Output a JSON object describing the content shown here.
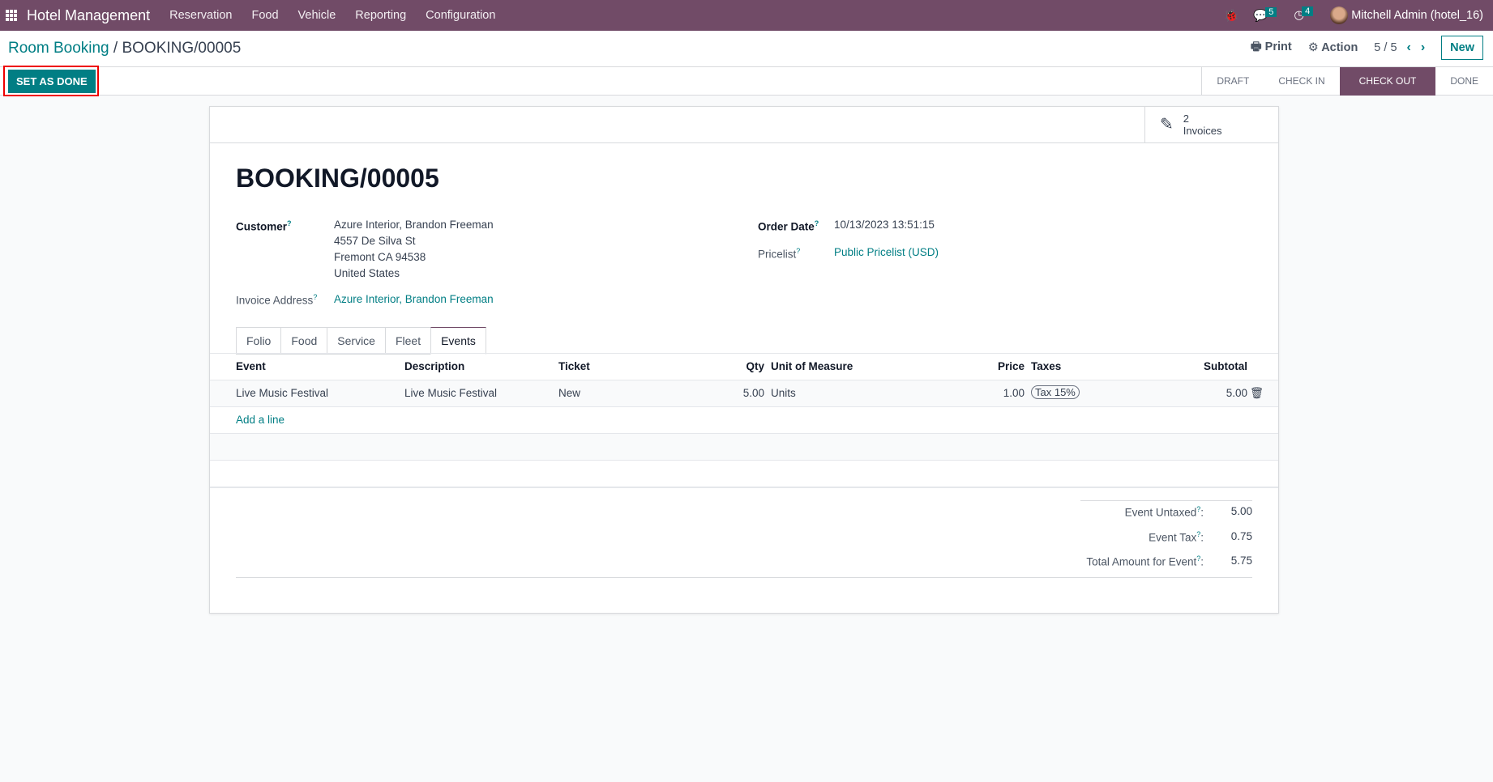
{
  "navbar": {
    "app_title": "Hotel Management",
    "menu": [
      "Reservation",
      "Food",
      "Vehicle",
      "Reporting",
      "Configuration"
    ],
    "messages_count": "5",
    "activities_count": "4",
    "user": "Mitchell Admin (hotel_16)",
    "brand_color": "#714b67"
  },
  "control_panel": {
    "breadcrumb_parent": "Room Booking",
    "breadcrumb_current": "BOOKING/00005",
    "print": "Print",
    "action": "Action",
    "pager": "5 / 5",
    "new": "New"
  },
  "actions": {
    "set_as_done": "SET AS DONE"
  },
  "statusbar": {
    "stages": [
      "DRAFT",
      "CHECK IN",
      "CHECK OUT",
      "DONE"
    ],
    "active": "CHECK OUT"
  },
  "smart_button": {
    "count": "2",
    "label": "Invoices"
  },
  "form": {
    "title": "BOOKING/00005",
    "customer_label": "Customer",
    "customer_name": "Azure Interior, Brandon Freeman",
    "customer_street": "4557 De Silva St",
    "customer_city": "Fremont CA 94538",
    "customer_country": "United States",
    "invoice_address_label": "Invoice Address",
    "invoice_address": "Azure Interior, Brandon Freeman",
    "order_date_label": "Order Date",
    "order_date": "10/13/2023 13:51:15",
    "pricelist_label": "Pricelist",
    "pricelist": "Public Pricelist (USD)"
  },
  "tabs": [
    "Folio",
    "Food",
    "Service",
    "Fleet",
    "Events"
  ],
  "table": {
    "headers": [
      "Event",
      "Description",
      "Ticket",
      "Qty",
      "Unit of Measure",
      "Price",
      "Taxes",
      "Subtotal"
    ],
    "rows": [
      {
        "event": "Live Music Festival",
        "description": "Live Music Festival",
        "ticket": "New",
        "qty": "5.00",
        "uom": "Units",
        "price": "1.00",
        "tax": "Tax 15%",
        "subtotal": "5.00"
      }
    ],
    "add_line": "Add a line"
  },
  "totals": {
    "untaxed_label": "Event Untaxed",
    "untaxed": "5.00",
    "tax_label": "Event Tax",
    "tax": "0.75",
    "total_label": "Total Amount for Event",
    "total": "5.75"
  }
}
